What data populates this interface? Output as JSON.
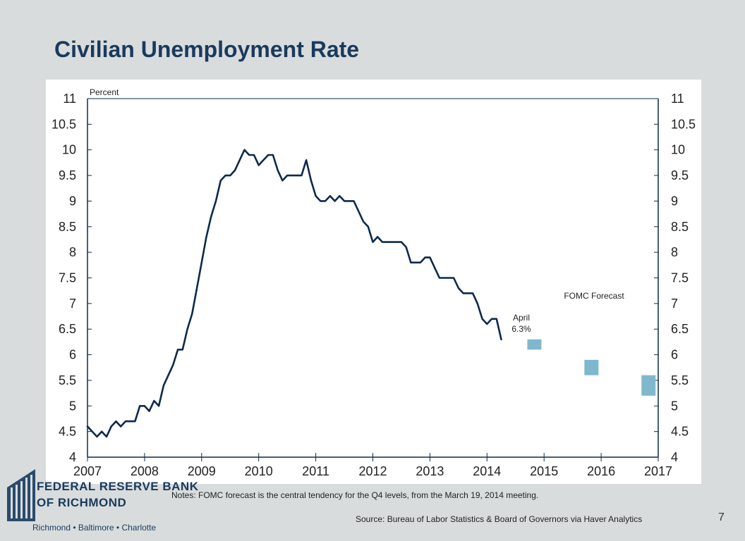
{
  "slide": {
    "title": "Civilian Unemployment Rate",
    "notes": "Notes: FOMC forecast is the central tendency for the Q4 levels, from the March 19, 2014 meeting.",
    "source": "Source: Bureau of Labor Statistics & Board of Governors via Haver Analytics",
    "page_number": "7"
  },
  "logo": {
    "line1": "FEDERAL RESERVE BANK",
    "line2": "OF RICHMOND",
    "cities": "Richmond • Baltimore • Charlotte"
  },
  "chart_data": {
    "type": "line",
    "ylabel": "Percent",
    "xlim": [
      2007,
      2017
    ],
    "ylim": [
      4,
      11
    ],
    "x_ticks": [
      "2007",
      "2008",
      "2009",
      "2010",
      "2011",
      "2012",
      "2013",
      "2014",
      "2015",
      "2016",
      "2017"
    ],
    "y_ticks": [
      "4",
      "4.5",
      "5",
      "5.5",
      "6",
      "6.5",
      "7",
      "7.5",
      "8",
      "8.5",
      "9",
      "9.5",
      "10",
      "10.5",
      "11"
    ],
    "grid": false,
    "colors": {
      "line": "#0d2a4c",
      "forecast": "#7fb8cc"
    },
    "series": [
      {
        "start": "2007-01",
        "frequency": "monthly",
        "values": [
          4.6,
          4.5,
          4.4,
          4.5,
          4.4,
          4.6,
          4.7,
          4.6,
          4.7,
          4.7,
          4.7,
          5.0,
          5.0,
          4.9,
          5.1,
          5.0,
          5.4,
          5.6,
          5.8,
          6.1,
          6.1,
          6.5,
          6.8,
          7.3,
          7.8,
          8.3,
          8.7,
          9.0,
          9.4,
          9.5,
          9.5,
          9.6,
          9.8,
          10.0,
          9.9,
          9.9,
          9.7,
          9.8,
          9.9,
          9.9,
          9.6,
          9.4,
          9.5,
          9.5,
          9.5,
          9.5,
          9.8,
          9.4,
          9.1,
          9.0,
          9.0,
          9.1,
          9.0,
          9.1,
          9.0,
          9.0,
          9.0,
          8.8,
          8.6,
          8.5,
          8.2,
          8.3,
          8.2,
          8.2,
          8.2,
          8.2,
          8.2,
          8.1,
          7.8,
          7.8,
          7.8,
          7.9,
          7.9,
          7.7,
          7.5,
          7.5,
          7.5,
          7.5,
          7.3,
          7.2,
          7.2,
          7.2,
          7.0,
          6.7,
          6.6,
          6.7,
          6.7,
          6.3
        ]
      }
    ],
    "forecast": [
      {
        "year": 2014,
        "low": 6.1,
        "high": 6.3
      },
      {
        "year": 2015,
        "low": 5.6,
        "high": 5.9
      },
      {
        "year": 2016,
        "low": 5.2,
        "high": 5.6
      }
    ],
    "annotations": {
      "forecast_label": "FOMC Forecast",
      "latest_month": "April",
      "latest_value": "6.3%"
    }
  }
}
